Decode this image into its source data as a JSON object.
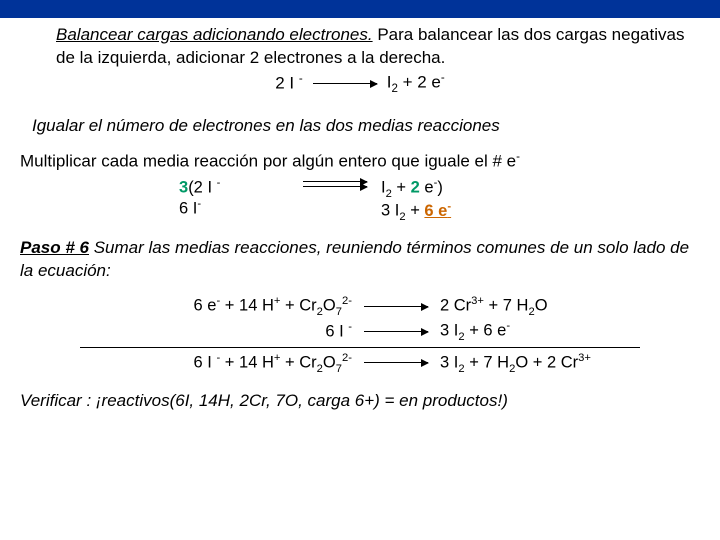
{
  "colors": {
    "top_bar": "#003399",
    "text": "#000000",
    "highlight_green": "#009966",
    "highlight_orange": "#cc6600",
    "background": "#ffffff"
  },
  "typography": {
    "body_pt": 17,
    "sub_sup_ratio": 0.68,
    "family": "Trebuchet MS"
  },
  "paragraphs": {
    "p1_italic": "Balancear cargas  adicionando electrones.",
    "p1_rest": " Para balancear las dos cargas negativas de la izquierda, adicionar 2 electrones a la derecha.",
    "p2": "Igualar el número de electrones en las dos medias reacciones",
    "p3": "Multiplicar  cada media reacción por algún entero que iguale el  # e",
    "p3_sup": "-",
    "step6_bold": "Paso # 6",
    "step6_rest": " Sumar las medias reacciones, reuniendo términos comunes de un solo lado de la ecuación:",
    "verify": "Verificar : ¡reactivos(6I, 14H, 2Cr, 7O, carga  6+) = en  productos!)"
  },
  "eq1": {
    "left": "2 I ",
    "left_sup": "-",
    "right_a": "I",
    "right_sub": "2",
    "right_b": " + 2 e",
    "right_sup": "-"
  },
  "eq_mult": {
    "row1_left_green": "3",
    "row1_left_rest": "(2 I ",
    "row1_left_sup": "-",
    "row1_right_a": "I",
    "row1_right_sub1": "2",
    "row1_right_b": " + ",
    "row1_right_green2": "2",
    "row1_right_c": " e",
    "row1_right_sup": "-",
    "row1_right_paren": ")",
    "row2_left": "6 I",
    "row2_left_sup": "-",
    "row2_right_a": "3 I",
    "row2_right_sub": "2",
    "row2_right_b": " + ",
    "row2_right_orange": "6 e",
    "row2_right_sup": "-"
  },
  "final": {
    "row1_left": "6 e<sup>-</sup> + 14 H<sup>+</sup> + Cr<sub>2</sub>O<sub>7</sub><sup>2-</sup>",
    "row1_right": "2 Cr<sup>3+</sup>  + 7 H<sub>2</sub>O",
    "row2_left": "6 I <sup>-</sup>",
    "row2_right": "3 I<sub>2</sub> + 6 e<sup>-</sup>",
    "row3_left": "6 I <sup>-</sup> + 14 H<sup>+</sup> + Cr<sub>2</sub>O<sub>7</sub><sup>2-</sup>",
    "row3_right": "3 I<sub>2</sub>  + 7 H<sub>2</sub>O + 2 Cr<sup>3+</sup>"
  }
}
